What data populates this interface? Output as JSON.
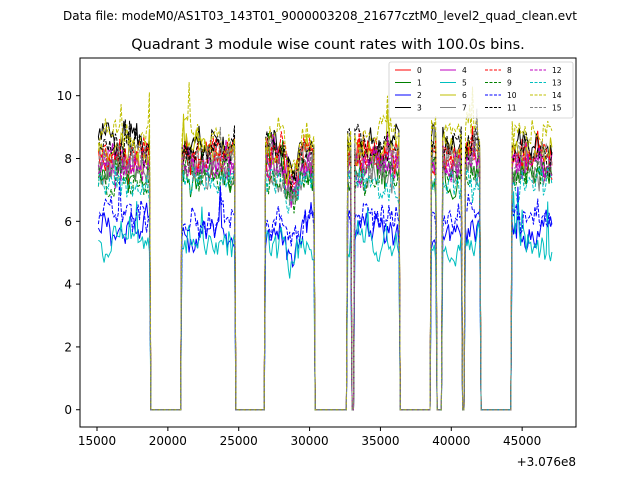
{
  "chart_data": {
    "type": "line",
    "suptitle": "Data file: modeM0/AS1T03_143T01_9000003208_21677cztM0_level2_quad_clean.evt",
    "title": "Quadrant 3 module wise count rates with 100.0s bins.",
    "xlabel": "",
    "ylabel": "",
    "x_offset_label": "+3.076e8",
    "xlim": [
      13800,
      48800
    ],
    "ylim": [
      -0.55,
      11.2
    ],
    "xticks": [
      15000,
      20000,
      25000,
      30000,
      35000,
      40000,
      45000
    ],
    "xtick_labels": [
      "15000",
      "20000",
      "25000",
      "30000",
      "35000",
      "40000",
      "45000"
    ],
    "yticks": [
      0,
      2,
      4,
      6,
      8,
      10
    ],
    "ytick_labels": [
      "0",
      "2",
      "4",
      "6",
      "8",
      "10"
    ],
    "grid": false,
    "legend_position": "top-right",
    "good_time_intervals": [
      [
        15100,
        18700
      ],
      [
        21000,
        24700
      ],
      [
        26900,
        30300
      ],
      [
        32700,
        32950
      ],
      [
        33200,
        36300
      ],
      [
        38600,
        38950
      ],
      [
        39400,
        40700
      ],
      [
        41000,
        42000
      ],
      [
        44300,
        47100
      ]
    ],
    "series": [
      {
        "name": "0",
        "color": "#ff0000",
        "dash": "solid",
        "level": 8.0
      },
      {
        "name": "1",
        "color": "#008000",
        "dash": "solid",
        "level": 7.5
      },
      {
        "name": "2",
        "color": "#0000ff",
        "dash": "solid",
        "level": 5.7
      },
      {
        "name": "3",
        "color": "#000000",
        "dash": "solid",
        "level": 8.4
      },
      {
        "name": "4",
        "color": "#bf00bf",
        "dash": "solid",
        "level": 7.9
      },
      {
        "name": "5",
        "color": "#00bfbf",
        "dash": "solid",
        "level": 5.3
      },
      {
        "name": "6",
        "color": "#bfbf00",
        "dash": "solid",
        "level": 8.2
      },
      {
        "name": "7",
        "color": "#808080",
        "dash": "solid",
        "level": 7.6
      },
      {
        "name": "8",
        "color": "#ff0000",
        "dash": "dashed",
        "level": 8.1
      },
      {
        "name": "9",
        "color": "#008000",
        "dash": "dashed",
        "level": 7.4
      },
      {
        "name": "10",
        "color": "#0000ff",
        "dash": "dashed",
        "level": 6.0
      },
      {
        "name": "11",
        "color": "#000000",
        "dash": "dashed",
        "level": 8.3
      },
      {
        "name": "12",
        "color": "#bf00bf",
        "dash": "dashed",
        "level": 7.8
      },
      {
        "name": "13",
        "color": "#00bfbf",
        "dash": "dashed",
        "level": 7.2
      },
      {
        "name": "14",
        "color": "#bfbf00",
        "dash": "dashed",
        "level": 8.7
      },
      {
        "name": "15",
        "color": "#808080",
        "dash": "dashed",
        "level": 7.9
      }
    ]
  }
}
